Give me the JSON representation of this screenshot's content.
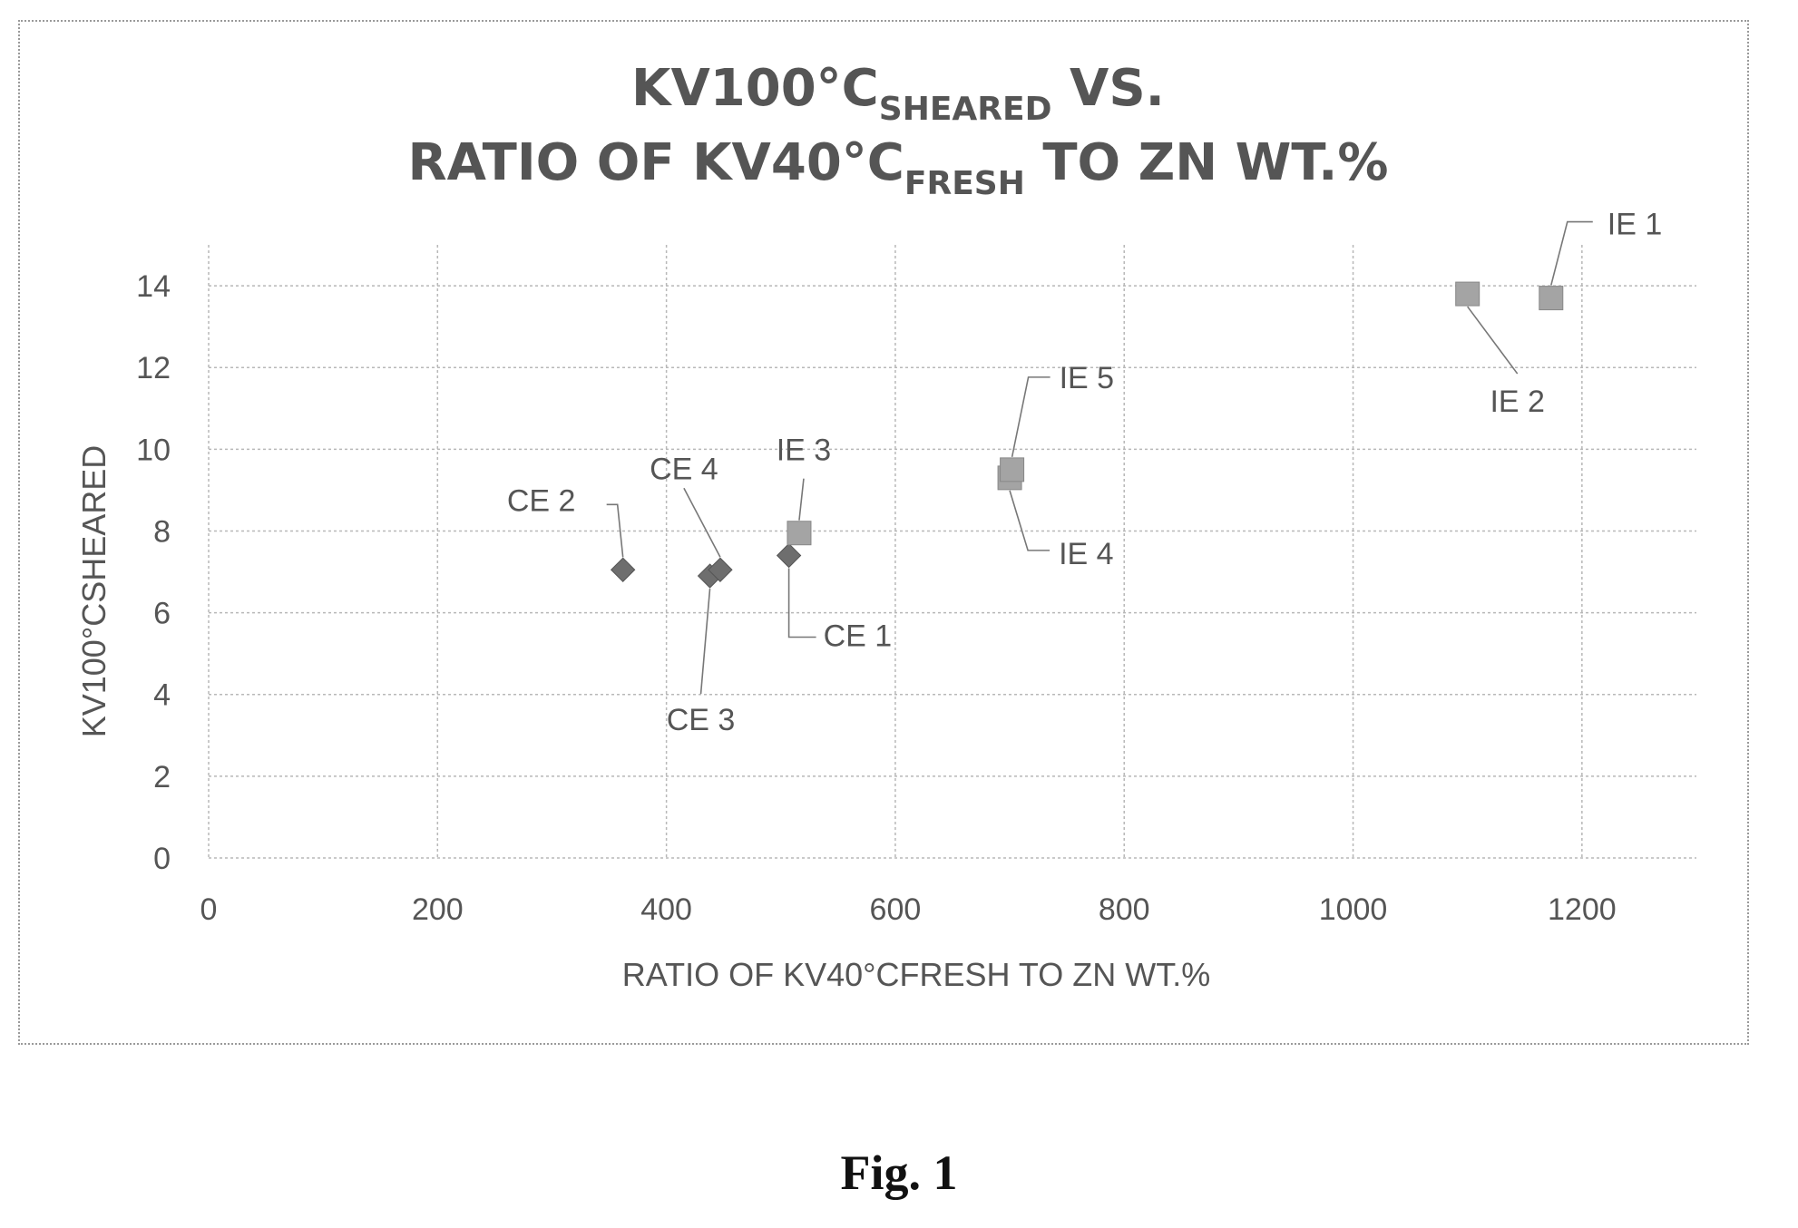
{
  "chart_data": {
    "type": "scatter",
    "title": {
      "line1": {
        "main": "KV100°C",
        "sub": "SHEARED",
        "suffix": " VS."
      },
      "line2": {
        "main": "RATIO OF KV40°C",
        "sub": "FRESH",
        "suffix": " TO ZN WT.%"
      }
    },
    "xlabel": "RATIO OF KV40°CFRESH TO ZN WT.%",
    "ylabel": "KV100°CSHEARED",
    "xlim": [
      0,
      1300
    ],
    "ylim": [
      0,
      15
    ],
    "x_ticks": [
      0,
      200,
      400,
      600,
      800,
      1000,
      1200
    ],
    "y_ticks": [
      0,
      2,
      4,
      6,
      8,
      10,
      12,
      14
    ],
    "grid": true,
    "series": [
      {
        "marker": "diamond",
        "color": "#6e6e6e",
        "points": [
          {
            "label": "CE 1",
            "x": 507,
            "y": 7.4
          },
          {
            "label": "CE 2",
            "x": 362,
            "y": 7.05
          },
          {
            "label": "CE 3",
            "x": 438,
            "y": 6.9
          },
          {
            "label": "CE 4",
            "x": 447,
            "y": 7.05
          }
        ]
      },
      {
        "marker": "square",
        "color": "#a4a4a4",
        "points": [
          {
            "label": "IE 1",
            "x": 1173,
            "y": 13.7
          },
          {
            "label": "IE 2",
            "x": 1100,
            "y": 13.8
          },
          {
            "label": "IE 3",
            "x": 516,
            "y": 7.95
          },
          {
            "label": "IE 4",
            "x": 700,
            "y": 9.3
          },
          {
            "label": "IE 5",
            "x": 702,
            "y": 9.5
          }
        ]
      }
    ]
  },
  "caption": "Fig. 1"
}
